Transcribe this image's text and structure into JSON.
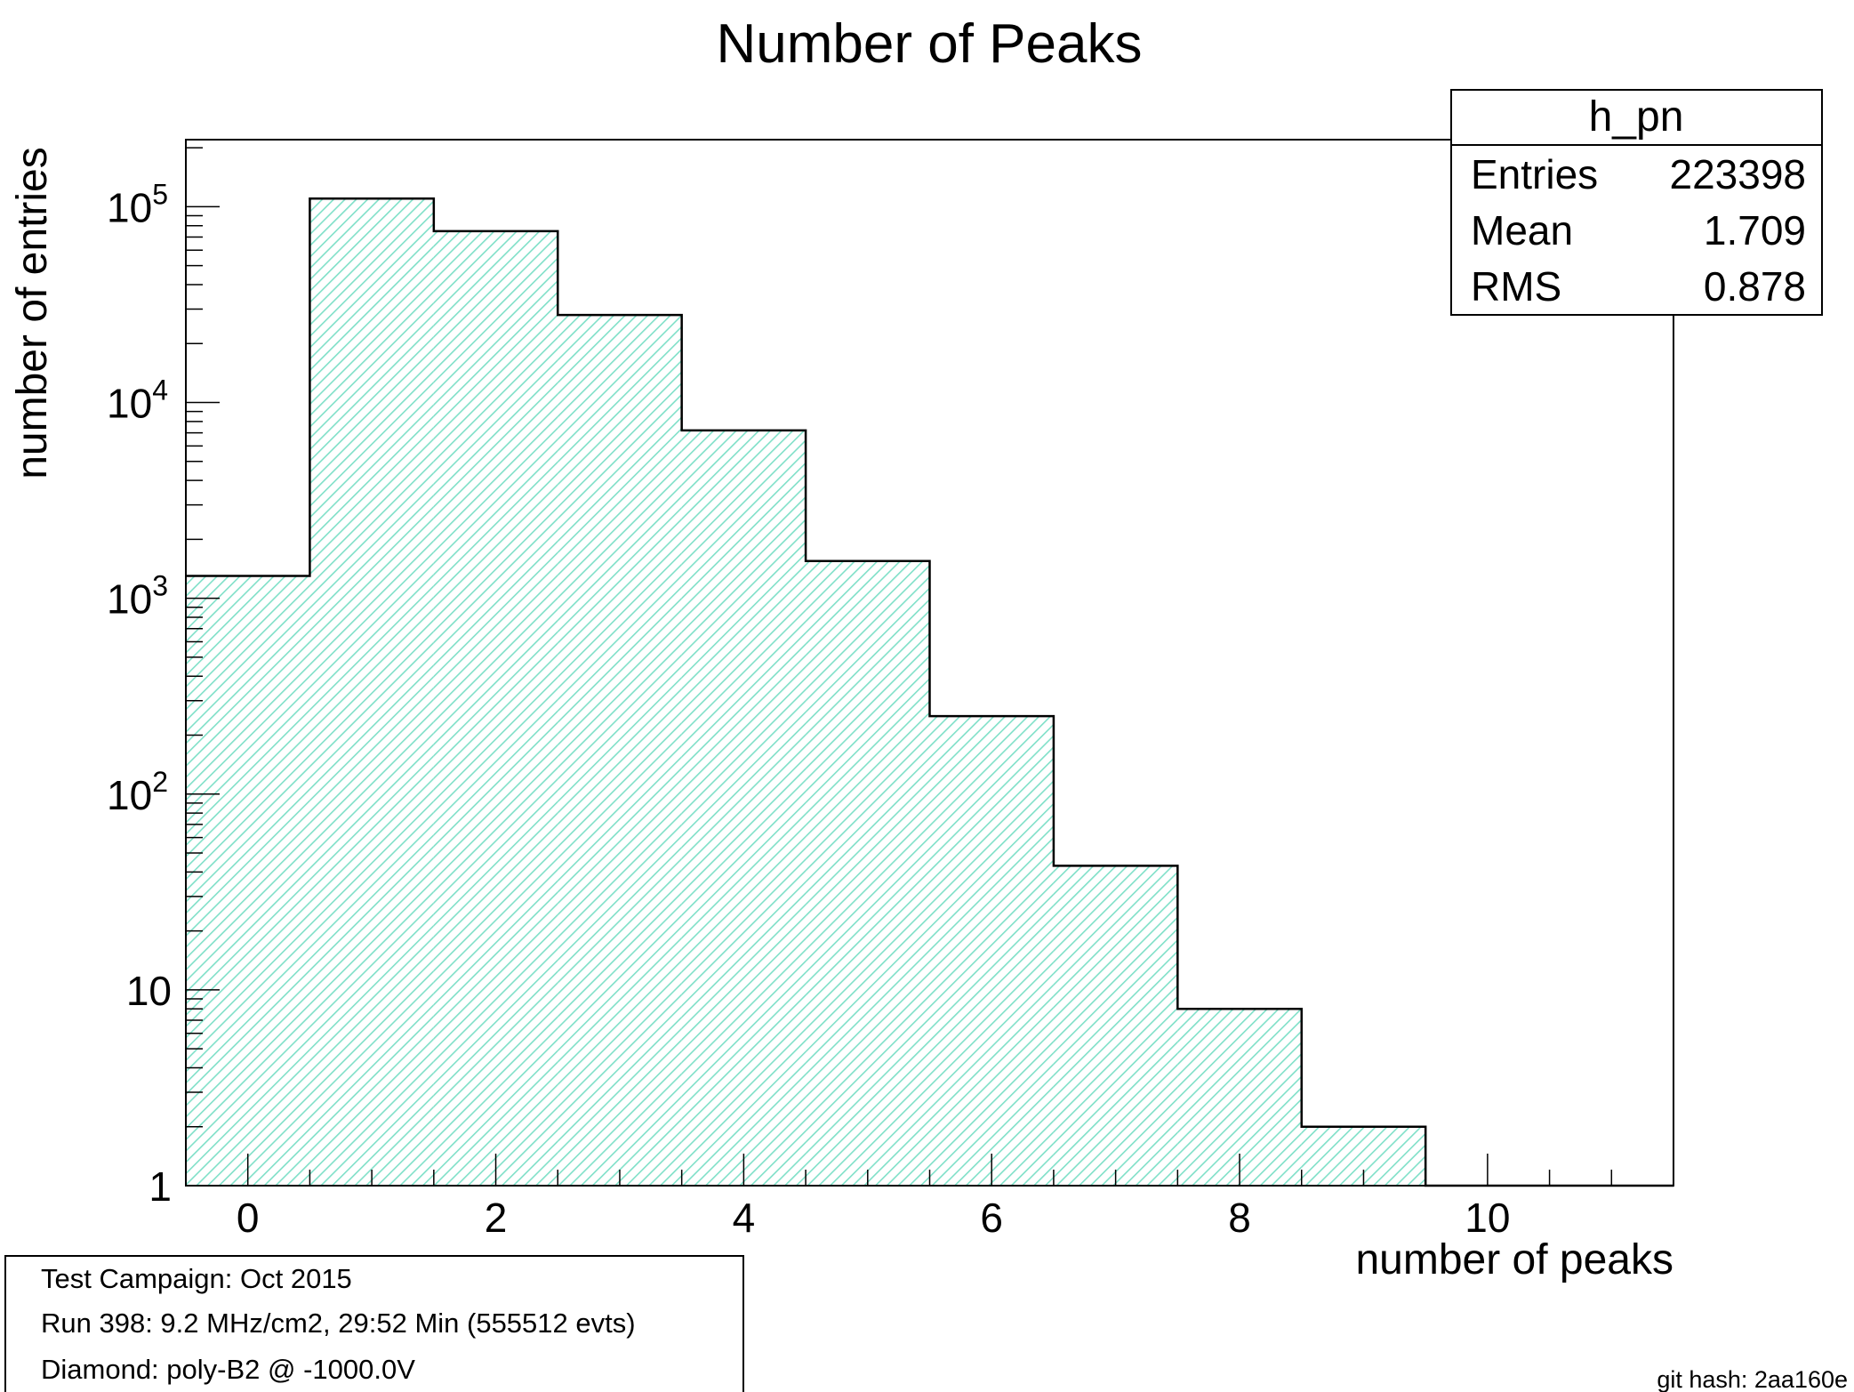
{
  "chart_data": {
    "type": "bar",
    "title": "Number of Peaks",
    "xlabel": "number of peaks",
    "ylabel": "number of entries",
    "xlim": [
      -0.5,
      11.5
    ],
    "ylim": [
      1,
      220000
    ],
    "yscale": "log",
    "grid": false,
    "bins": [
      {
        "low": -0.5,
        "high": 0.5,
        "value": 1300
      },
      {
        "low": 0.5,
        "high": 1.5,
        "value": 110000
      },
      {
        "low": 1.5,
        "high": 2.5,
        "value": 75000
      },
      {
        "low": 2.5,
        "high": 3.5,
        "value": 28000
      },
      {
        "low": 3.5,
        "high": 4.5,
        "value": 7200
      },
      {
        "low": 4.5,
        "high": 5.5,
        "value": 1550
      },
      {
        "low": 5.5,
        "high": 6.5,
        "value": 250
      },
      {
        "low": 6.5,
        "high": 7.5,
        "value": 43
      },
      {
        "low": 7.5,
        "high": 8.5,
        "value": 8
      },
      {
        "low": 8.5,
        "high": 9.5,
        "value": 2
      },
      {
        "low": 9.5,
        "high": 10.5,
        "value": 0
      },
      {
        "low": 10.5,
        "high": 11.5,
        "value": 0
      }
    ],
    "x_ticks": [
      {
        "value": 0,
        "label": "0"
      },
      {
        "value": 2,
        "label": "2"
      },
      {
        "value": 4,
        "label": "4"
      },
      {
        "value": 6,
        "label": "6"
      },
      {
        "value": 8,
        "label": "8"
      },
      {
        "value": 10,
        "label": "10"
      }
    ],
    "y_ticks": [
      {
        "value": 1,
        "mantissa": "1",
        "exponent": ""
      },
      {
        "value": 10,
        "mantissa": "10",
        "exponent": ""
      },
      {
        "value": 100,
        "mantissa": "10",
        "exponent": "2"
      },
      {
        "value": 1000,
        "mantissa": "10",
        "exponent": "3"
      },
      {
        "value": 10000,
        "mantissa": "10",
        "exponent": "4"
      },
      {
        "value": 100000,
        "mantissa": "10",
        "exponent": "5"
      }
    ],
    "fill_color": "#b6eedf",
    "line_color": "#000000"
  },
  "stats_box": {
    "name": "h_pn",
    "rows": [
      {
        "label": "Entries",
        "value": "223398"
      },
      {
        "label": "Mean",
        "value": "1.709"
      },
      {
        "label": "RMS",
        "value": "0.878"
      }
    ]
  },
  "info_box": {
    "lines": [
      "Test Campaign: Oct 2015",
      "Run 398: 9.2 MHz/cm2, 29:52 Min (555512 evts)",
      "Diamond: poly-B2 @ -1000.0V"
    ]
  },
  "footer": {
    "git_hash": "git hash: 2aa160e"
  }
}
